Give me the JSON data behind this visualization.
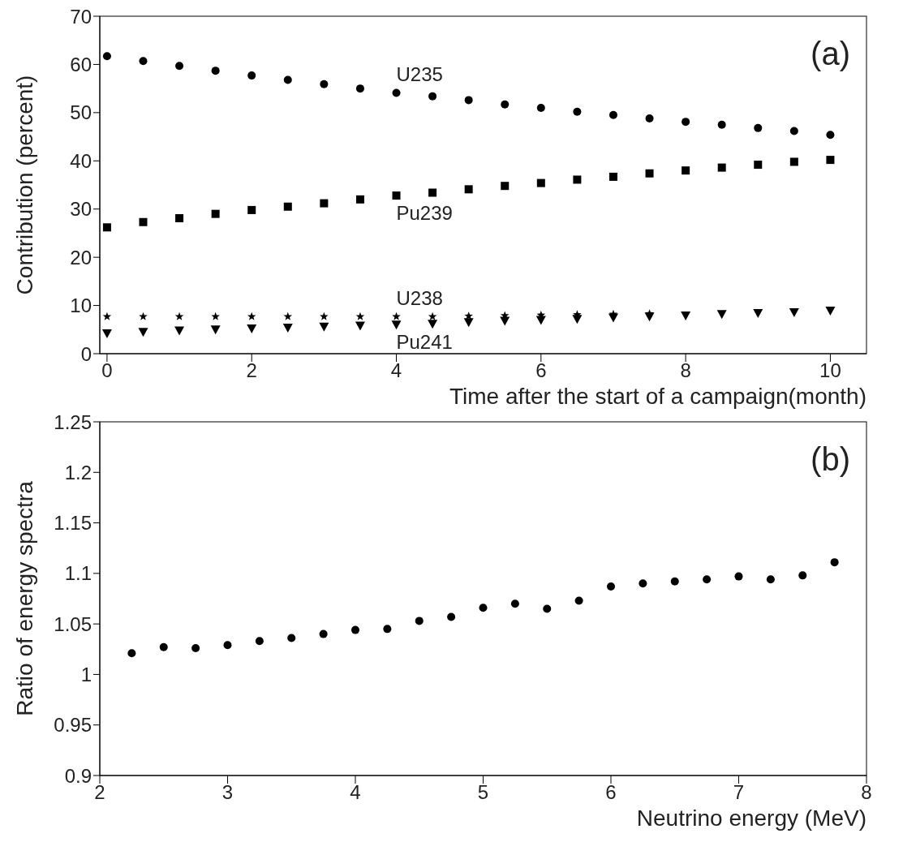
{
  "chart_data": [
    {
      "type": "scatter",
      "xlabel": "Time after the start of a campaign(month)",
      "ylabel": "Contribution (percent)",
      "annotations": [
        "(a)"
      ],
      "x": [
        0,
        0.5,
        1,
        1.5,
        2,
        2.5,
        3,
        3.5,
        4,
        4.5,
        5,
        5.5,
        6,
        6.5,
        7,
        7.5,
        8,
        8.5,
        9,
        9.5,
        10
      ],
      "series": [
        {
          "name": "U235",
          "color": "#000000",
          "marker": "circle",
          "values": [
            61.7,
            60.7,
            59.7,
            58.7,
            57.7,
            56.8,
            55.9,
            55.0,
            54.1,
            53.4,
            52.6,
            51.7,
            51.0,
            50.2,
            49.5,
            48.8,
            48.1,
            47.5,
            46.8,
            46.2,
            45.4
          ]
        },
        {
          "name": "Pu239",
          "color": "#000000",
          "marker": "square",
          "values": [
            26.2,
            27.3,
            28.1,
            29.0,
            29.8,
            30.5,
            31.2,
            32.0,
            32.8,
            33.4,
            34.1,
            34.8,
            35.4,
            36.1,
            36.7,
            37.4,
            38.0,
            38.6,
            39.2,
            39.8,
            40.2
          ]
        },
        {
          "name": "U238",
          "color": "#000000",
          "marker": "star",
          "values": [
            7.7,
            7.7,
            7.7,
            7.7,
            7.7,
            7.7,
            7.7,
            7.7,
            7.7,
            7.7,
            7.8,
            7.9,
            8.0,
            8.1,
            8.2,
            8.3,
            null,
            null,
            null,
            null,
            null
          ]
        },
        {
          "name": "Pu241",
          "color": "#000000",
          "marker": "triangle",
          "values": [
            4.2,
            4.5,
            4.8,
            5.0,
            5.2,
            5.4,
            5.6,
            5.8,
            6.0,
            6.2,
            6.5,
            6.8,
            7.0,
            7.2,
            7.5,
            7.7,
            7.9,
            8.2,
            8.4,
            8.6,
            8.9
          ]
        }
      ],
      "xlim": [
        -0.1,
        10.5
      ],
      "xticks": [
        0,
        2,
        4,
        6,
        8,
        10
      ],
      "ylim": [
        0,
        70
      ],
      "yticks": [
        0,
        10,
        20,
        30,
        40,
        50,
        60,
        70
      ],
      "grid": false,
      "legend": false
    },
    {
      "type": "scatter",
      "xlabel": "Neutrino energy (MeV)",
      "ylabel": "Ratio of energy spectra",
      "annotations": [
        "(b)"
      ],
      "x": [
        2.25,
        2.5,
        2.75,
        3,
        3.25,
        3.5,
        3.75,
        4,
        4.25,
        4.5,
        4.75,
        5,
        5.25,
        5.5,
        5.75,
        6,
        6.25,
        6.5,
        6.75,
        7,
        7.25,
        7.5,
        7.75
      ],
      "series": [
        {
          "color": "#000000",
          "marker": "circle",
          "values": [
            1.021,
            1.027,
            1.026,
            1.029,
            1.033,
            1.036,
            1.04,
            1.044,
            1.045,
            1.053,
            1.057,
            1.066,
            1.07,
            1.065,
            1.073,
            1.087,
            1.09,
            1.092,
            1.094,
            1.097,
            1.094,
            1.098,
            1.111
          ]
        }
      ],
      "xlim": [
        2,
        8
      ],
      "xticks": [
        2,
        3,
        4,
        5,
        6,
        7,
        8
      ],
      "ylim": [
        0.9,
        1.25
      ],
      "yticks": [
        0.9,
        0.95,
        1,
        1.05,
        1.1,
        1.15,
        1.2,
        1.25
      ],
      "grid": false,
      "legend": false
    }
  ]
}
